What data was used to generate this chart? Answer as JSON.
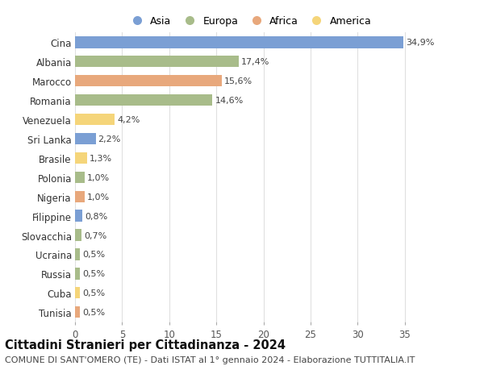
{
  "countries": [
    "Cina",
    "Albania",
    "Marocco",
    "Romania",
    "Venezuela",
    "Sri Lanka",
    "Brasile",
    "Polonia",
    "Nigeria",
    "Filippine",
    "Slovacchia",
    "Ucraina",
    "Russia",
    "Cuba",
    "Tunisia"
  ],
  "values": [
    34.9,
    17.4,
    15.6,
    14.6,
    4.2,
    2.2,
    1.3,
    1.0,
    1.0,
    0.8,
    0.7,
    0.5,
    0.5,
    0.5,
    0.5
  ],
  "labels": [
    "34,9%",
    "17,4%",
    "15,6%",
    "14,6%",
    "4,2%",
    "2,2%",
    "1,3%",
    "1,0%",
    "1,0%",
    "0,8%",
    "0,7%",
    "0,5%",
    "0,5%",
    "0,5%",
    "0,5%"
  ],
  "colors": [
    "#7b9fd4",
    "#a8bc8a",
    "#e8a87c",
    "#a8bc8a",
    "#f5d57a",
    "#7b9fd4",
    "#f5d57a",
    "#a8bc8a",
    "#e8a87c",
    "#7b9fd4",
    "#a8bc8a",
    "#a8bc8a",
    "#a8bc8a",
    "#f5d57a",
    "#e8a87c"
  ],
  "legend_labels": [
    "Asia",
    "Europa",
    "Africa",
    "America"
  ],
  "legend_colors": [
    "#7b9fd4",
    "#a8bc8a",
    "#e8a87c",
    "#f5d57a"
  ],
  "title": "Cittadini Stranieri per Cittadinanza - 2024",
  "subtitle": "COMUNE DI SANT'OMERO (TE) - Dati ISTAT al 1° gennaio 2024 - Elaborazione TUTTITALIA.IT",
  "xlim": [
    0,
    37
  ],
  "xticks": [
    0,
    5,
    10,
    15,
    20,
    25,
    30,
    35
  ],
  "background_color": "#ffffff",
  "grid_color": "#e0e0e0",
  "bar_height": 0.6,
  "title_fontsize": 10.5,
  "subtitle_fontsize": 8.0,
  "tick_fontsize": 8.5,
  "label_fontsize": 8.0
}
